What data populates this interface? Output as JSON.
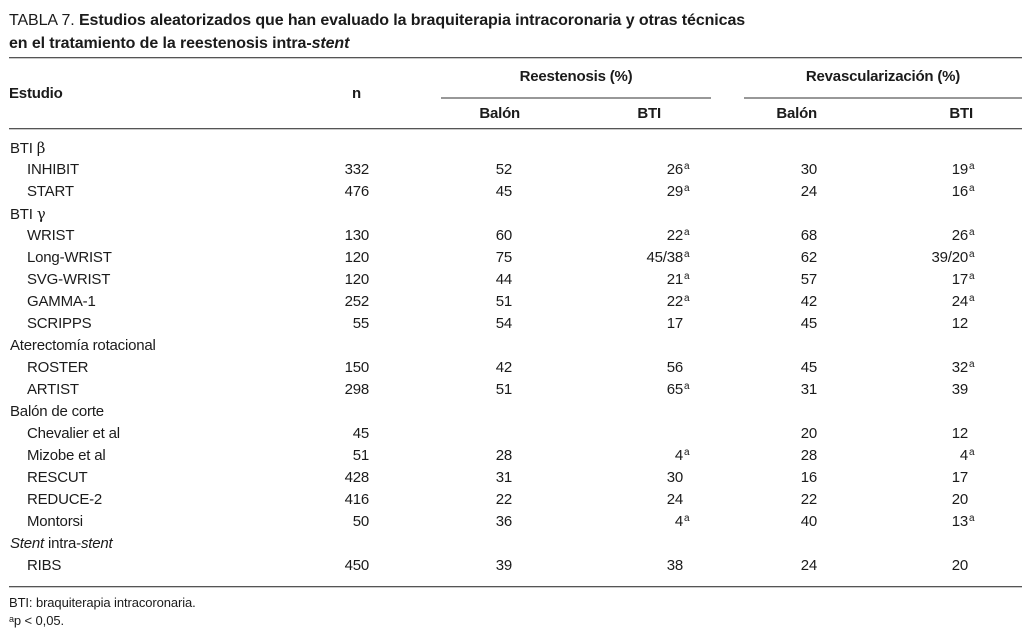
{
  "colors": {
    "background": "#ffffff",
    "text": "#1b1b1b",
    "rule_dark": "#555555",
    "rule_gray": "#989898"
  },
  "title": {
    "prefix": "TABLA 7.",
    "line1": "Estudios aleatorizados que han evaluado la braquiterapia intracoronaria y otras técnicas",
    "line2": "en el tratamiento de la reestenosis intra-",
    "line2_italic": "stent"
  },
  "header": {
    "study": "Estudio",
    "n": "n",
    "group_reestenosis": "Reestenosis (%)",
    "group_revascularizacion": "Revascularización (%)",
    "sub_balon1": "Balón",
    "sub_bti1": "BTI",
    "sub_balon2": "Balón",
    "sub_bti2": "BTI"
  },
  "rows": [
    {
      "group": true,
      "parts": [
        {
          "t": "BTI "
        },
        {
          "t": "β",
          "style": "greek"
        }
      ]
    },
    {
      "label": "INHIBIT",
      "cells": [
        {
          "v": "332"
        },
        {
          "v": "52"
        },
        {
          "v": "26",
          "sup": "a"
        },
        {
          "v": "30"
        },
        {
          "v": "19",
          "sup": "a"
        }
      ]
    },
    {
      "label": "START",
      "cells": [
        {
          "v": "476"
        },
        {
          "v": "45"
        },
        {
          "v": "29",
          "sup": "a"
        },
        {
          "v": "24"
        },
        {
          "v": "16",
          "sup": "a"
        }
      ]
    },
    {
      "group": true,
      "parts": [
        {
          "t": "BTI "
        },
        {
          "t": "γ",
          "style": "greek"
        }
      ]
    },
    {
      "label": "WRIST",
      "cells": [
        {
          "v": "130"
        },
        {
          "v": "60"
        },
        {
          "v": "22",
          "sup": "a"
        },
        {
          "v": "68"
        },
        {
          "v": "26",
          "sup": "a"
        }
      ]
    },
    {
      "label": "Long-WRIST",
      "cells": [
        {
          "v": "120"
        },
        {
          "v": "75"
        },
        {
          "v": "45/38",
          "sup": "a"
        },
        {
          "v": "62"
        },
        {
          "v": "39/20",
          "sup": "a"
        }
      ]
    },
    {
      "label": "SVG-WRIST",
      "cells": [
        {
          "v": "120"
        },
        {
          "v": "44"
        },
        {
          "v": "21",
          "sup": "a"
        },
        {
          "v": "57"
        },
        {
          "v": "17",
          "sup": "a"
        }
      ]
    },
    {
      "label": "GAMMA-1",
      "cells": [
        {
          "v": "252"
        },
        {
          "v": "51"
        },
        {
          "v": "22",
          "sup": "a"
        },
        {
          "v": "42"
        },
        {
          "v": "24",
          "sup": "a"
        }
      ]
    },
    {
      "label": "SCRIPPS",
      "cells": [
        {
          "v": "55"
        },
        {
          "v": "54"
        },
        {
          "v": "17"
        },
        {
          "v": "45"
        },
        {
          "v": "12"
        }
      ]
    },
    {
      "group": true,
      "parts": [
        {
          "t": "Aterectomía rotacional"
        }
      ]
    },
    {
      "label": "ROSTER",
      "cells": [
        {
          "v": "150"
        },
        {
          "v": "42"
        },
        {
          "v": "56"
        },
        {
          "v": "45"
        },
        {
          "v": "32",
          "sup": "a"
        }
      ]
    },
    {
      "label": "ARTIST",
      "cells": [
        {
          "v": "298"
        },
        {
          "v": "51"
        },
        {
          "v": "65",
          "sup": "a"
        },
        {
          "v": "31"
        },
        {
          "v": "39"
        }
      ]
    },
    {
      "group": true,
      "parts": [
        {
          "t": "Balón de corte"
        }
      ]
    },
    {
      "label": "Chevalier et al",
      "cells": [
        {
          "v": "45"
        },
        {
          "v": ""
        },
        {
          "v": ""
        },
        {
          "v": "20"
        },
        {
          "v": "12"
        }
      ]
    },
    {
      "label": "Mizobe et al",
      "cells": [
        {
          "v": "51"
        },
        {
          "v": "28"
        },
        {
          "v": "4",
          "sup": "a"
        },
        {
          "v": "28"
        },
        {
          "v": "4",
          "sup": "a"
        }
      ]
    },
    {
      "label": "RESCUT",
      "cells": [
        {
          "v": "428"
        },
        {
          "v": "31"
        },
        {
          "v": "30"
        },
        {
          "v": "16"
        },
        {
          "v": "17"
        }
      ]
    },
    {
      "label": "REDUCE-2",
      "cells": [
        {
          "v": "416"
        },
        {
          "v": "22"
        },
        {
          "v": "24"
        },
        {
          "v": "22"
        },
        {
          "v": "20"
        }
      ]
    },
    {
      "label": "Montorsi",
      "cells": [
        {
          "v": "50"
        },
        {
          "v": "36"
        },
        {
          "v": "4",
          "sup": "a"
        },
        {
          "v": "40"
        },
        {
          "v": "13",
          "sup": "a"
        }
      ]
    },
    {
      "group": true,
      "parts": [
        {
          "t": "Stent",
          "style": "italic"
        },
        {
          "t": " intra-"
        },
        {
          "t": "stent",
          "style": "italic"
        }
      ]
    },
    {
      "label": "RIBS",
      "cells": [
        {
          "v": "450"
        },
        {
          "v": "39"
        },
        {
          "v": "38"
        },
        {
          "v": "24"
        },
        {
          "v": "20"
        }
      ]
    }
  ],
  "footnotes": {
    "line1": "BTI: braquiterapia intracoronaria.",
    "line2_sup": "a",
    "line2": "p < 0,05."
  }
}
